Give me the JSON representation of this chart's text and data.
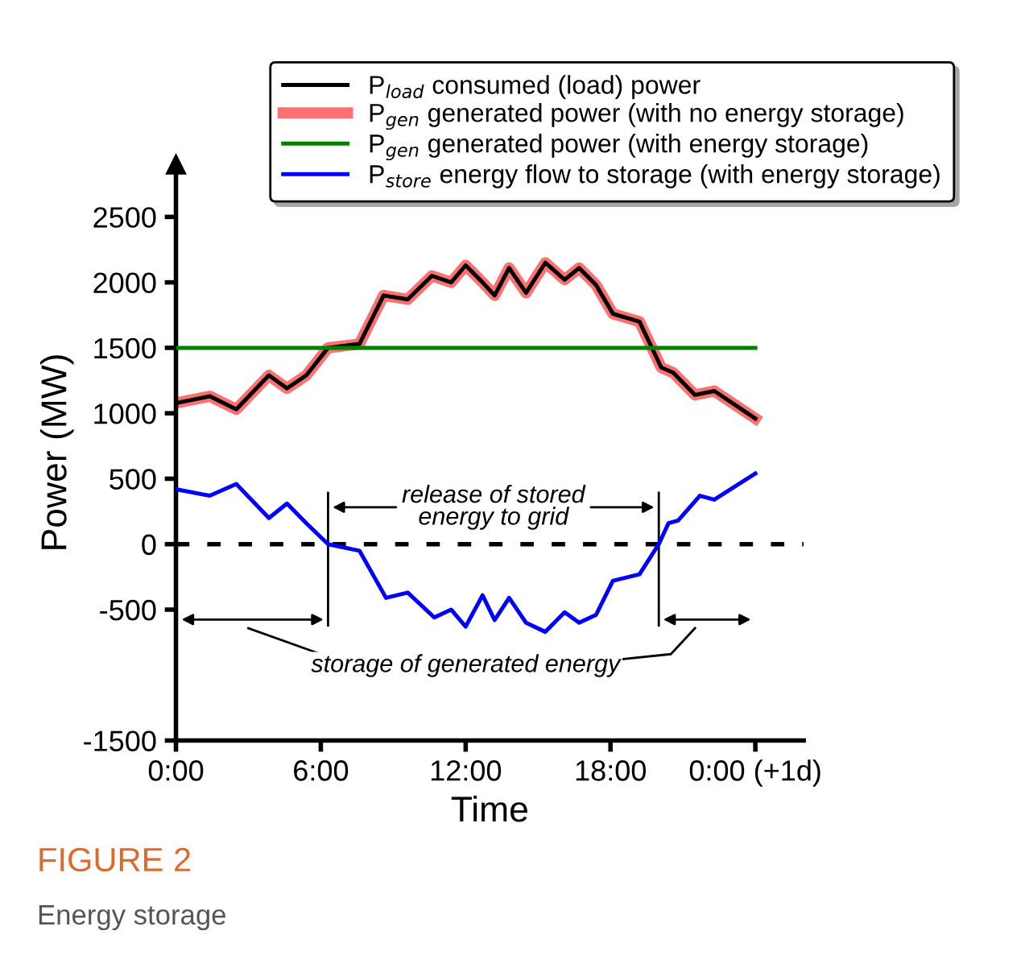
{
  "chart_data": {
    "type": "line",
    "xlabel": "Time",
    "ylabel": "Power (MW)",
    "xlim": [
      0,
      26
    ],
    "ylim": [
      -1500,
      2900
    ],
    "xticks": [
      {
        "value": 0,
        "label": "0:00"
      },
      {
        "value": 6,
        "label": "6:00"
      },
      {
        "value": 12,
        "label": "12:00"
      },
      {
        "value": 18,
        "label": "18:00"
      },
      {
        "value": 24,
        "label": "0:00 (+1d)"
      }
    ],
    "yticks": [
      -1500,
      -500,
      0,
      500,
      1000,
      1500,
      2000,
      2500
    ],
    "series": [
      {
        "name": "P$_{load}$ consumed (load) power",
        "color": "#000000",
        "x": [
          0.07,
          1.4,
          2.5,
          3.85,
          4.6,
          5.4,
          6.3,
          7.6,
          8.6,
          9.6,
          10.6,
          11.4,
          12,
          12.7,
          13.2,
          13.8,
          14.5,
          15.3,
          16.1,
          16.7,
          17.4,
          18.1,
          19.2,
          20.1,
          20.6,
          21.5,
          22.3,
          24
        ],
        "values": [
          1080,
          1130,
          1030,
          1290,
          1190,
          1290,
          1500,
          1530,
          1900,
          1870,
          2050,
          2000,
          2130,
          2000,
          1900,
          2110,
          1920,
          2150,
          2020,
          2110,
          1980,
          1760,
          1700,
          1350,
          1310,
          1140,
          1170,
          960
        ]
      },
      {
        "name": "P$_{gen}$ generated power (with no energy storage)",
        "color": "#ff4d4d",
        "x": [
          0.07,
          1.4,
          2.5,
          3.85,
          4.6,
          5.4,
          6.3,
          7.6,
          8.6,
          9.6,
          10.6,
          11.4,
          12,
          12.7,
          13.2,
          13.8,
          14.5,
          15.3,
          16.1,
          16.7,
          17.4,
          18.1,
          19.2,
          20.1,
          20.6,
          21.5,
          22.3,
          24
        ],
        "values": [
          1080,
          1130,
          1030,
          1290,
          1190,
          1290,
          1500,
          1530,
          1900,
          1870,
          2050,
          2000,
          2130,
          2000,
          1900,
          2110,
          1920,
          2150,
          2020,
          2110,
          1980,
          1760,
          1700,
          1350,
          1310,
          1140,
          1170,
          960
        ]
      },
      {
        "name": "P$_{gen}$ generated power (with energy storage)",
        "color": "#008000",
        "x": [
          0,
          24
        ],
        "values": [
          1500,
          1500
        ]
      },
      {
        "name": "P$_{store}$ energy flow to storage (with energy storage)",
        "color": "#0000ff",
        "x": [
          0,
          1.4,
          2.5,
          3.85,
          4.6,
          5.4,
          6.3,
          7.6,
          8.7,
          9.6,
          10.7,
          11.4,
          12,
          12.7,
          13.2,
          13.8,
          14.5,
          15.3,
          16.1,
          16.7,
          17.4,
          18.1,
          19.2,
          20,
          20.4,
          20.8,
          21.7,
          22.3,
          24
        ],
        "values": [
          420,
          370,
          460,
          200,
          310,
          160,
          0,
          -50,
          -410,
          -370,
          -560,
          -500,
          -630,
          -390,
          -580,
          -410,
          -600,
          -670,
          -520,
          -600,
          -540,
          -280,
          -230,
          0,
          160,
          180,
          370,
          340,
          540
        ]
      }
    ],
    "ref_lines": [
      {
        "axis": "y",
        "value": 0,
        "color": "#000000",
        "line_style": "dashed"
      }
    ],
    "legend": "top right",
    "grid": false,
    "annotations": [
      "release of stored\nenergy to grid",
      "storage of generated energy",
      "FIGURE 2",
      "Energy storage"
    ]
  }
}
